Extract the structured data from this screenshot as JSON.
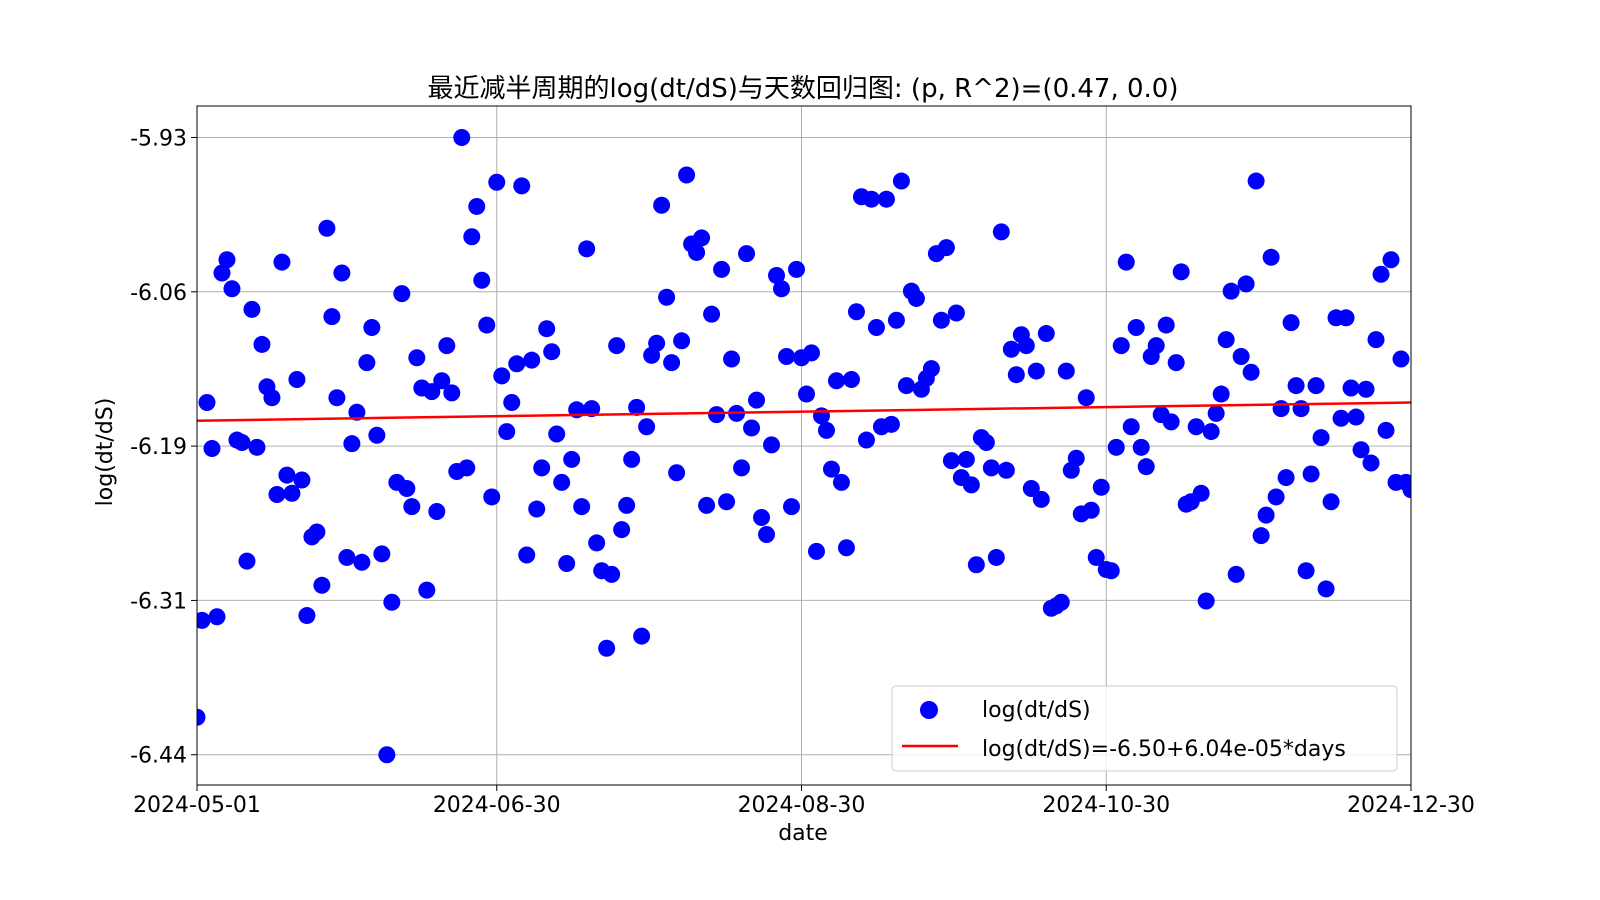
{
  "chart_data": {
    "type": "scatter",
    "title": "最近减半周期的log(dt/dS)与天数回归图: (p, R^2)=(0.47, 0.0)",
    "xlabel": "date",
    "ylabel": "log(dt/dS)",
    "xlim": [
      0,
      243
    ],
    "ylim": [
      -6.465,
      -5.904
    ],
    "grid": true,
    "x_unit": "days since 2024-05-01",
    "xticks": [
      {
        "value": 0,
        "label": "2024-05-01"
      },
      {
        "value": 60,
        "label": "2024-06-30"
      },
      {
        "value": 121,
        "label": "2024-08-30"
      },
      {
        "value": 182,
        "label": "2024-10-30"
      },
      {
        "value": 243,
        "label": "2024-12-30"
      }
    ],
    "yticks": [
      {
        "value": -5.93,
        "label": "-5.93"
      },
      {
        "value": -6.0575,
        "label": "-6.06"
      },
      {
        "value": -6.185,
        "label": "-6.19"
      },
      {
        "value": -6.3125,
        "label": "-6.31"
      },
      {
        "value": -6.44,
        "label": "-6.44"
      }
    ],
    "series": [
      {
        "name": "log(dt/dS)",
        "kind": "scatter",
        "color": "#0000ff",
        "y": [
          -6.409,
          -6.329,
          -6.149,
          -6.187,
          -6.326,
          -6.042,
          -6.031,
          -6.055,
          -6.18,
          -6.182,
          -6.28,
          -6.072,
          -6.186,
          -6.101,
          -6.136,
          -6.145,
          -6.225,
          -6.033,
          -6.209,
          -6.224,
          -6.13,
          -6.213,
          -6.325,
          -6.26,
          -6.256,
          -6.3,
          -6.005,
          -6.078,
          -6.145,
          -6.042,
          -6.277,
          -6.183,
          -6.157,
          -6.281,
          -6.116,
          -6.087,
          -6.176,
          -6.274,
          -6.44,
          -6.314,
          -6.215,
          -6.059,
          -6.22,
          -6.235,
          -6.112,
          -6.137,
          -6.304,
          -6.14,
          -6.239,
          -6.131,
          -6.102,
          -6.141,
          -6.206,
          -5.93,
          -6.203,
          -6.012,
          -5.987,
          -6.048,
          -6.085,
          -6.227,
          -5.967,
          -6.127,
          -6.173,
          -6.149,
          -6.117,
          -5.97,
          -6.275,
          -6.114,
          -6.237,
          -6.203,
          -6.088,
          -6.107,
          -6.175,
          -6.215,
          -6.282,
          -6.196,
          -6.155,
          -6.235,
          -6.022,
          -6.154,
          -6.265,
          -6.288,
          -6.352,
          -6.291,
          -6.102,
          -6.254,
          -6.234,
          -6.196,
          -6.153,
          -6.342,
          -6.169,
          -6.11,
          -6.1,
          -5.986,
          -6.062,
          -6.116,
          -6.207,
          -6.098,
          -5.961,
          -6.018,
          -6.025,
          -6.013,
          -6.234,
          -6.076,
          -6.159,
          -6.039,
          -6.231,
          -6.113,
          -6.158,
          -6.203,
          -6.026,
          -6.17,
          -6.147,
          -6.244,
          -6.258,
          -6.184,
          -6.044,
          -6.055,
          -6.111,
          -6.235,
          -6.039,
          -6.112,
          -6.142,
          -6.108,
          -6.272,
          -6.16,
          -6.172,
          -6.204,
          -6.131,
          -6.215,
          -6.269,
          -6.13,
          -6.074,
          -5.979,
          -6.18,
          -5.981,
          -6.087,
          -6.169,
          -5.981,
          -6.167,
          -6.081,
          -5.966,
          -6.135,
          -6.057,
          -6.063,
          -6.138,
          -6.129,
          -6.121,
          -6.026,
          -6.081,
          -6.021,
          -6.197,
          -6.075,
          -6.211,
          -6.196,
          -6.217,
          -6.283,
          -6.178,
          -6.182,
          -6.203,
          -6.277,
          -6.008,
          -6.205,
          -6.105,
          -6.126,
          -6.093,
          -6.102,
          -6.22,
          -6.123,
          -6.229,
          -6.092,
          -6.319,
          -6.317,
          -6.314,
          -6.123,
          -6.205,
          -6.195,
          -6.241,
          -6.145,
          -6.238,
          -6.277,
          -6.219,
          -6.287,
          -6.288,
          -6.186,
          -6.102,
          -6.033,
          -6.169,
          -6.087,
          -6.186,
          -6.202,
          -6.111,
          -6.102,
          -6.159,
          -6.085,
          -6.165,
          -6.116,
          -6.041,
          -6.233,
          -6.231,
          -6.169,
          -6.224,
          -6.313,
          -6.173,
          -6.158,
          -6.142,
          -6.097,
          -6.057,
          -6.291,
          -6.111,
          -6.051,
          -6.124,
          -5.966,
          -6.259,
          -6.242,
          -6.029,
          -6.227,
          -6.154,
          -6.211,
          -6.083,
          -6.135,
          -6.154,
          -6.288,
          -6.208,
          -6.135,
          -6.178,
          -6.303,
          -6.231,
          -6.079,
          -6.162,
          -6.079,
          -6.137,
          -6.161,
          -6.188,
          -6.138,
          -6.199,
          -6.097,
          -6.043,
          -6.172,
          -6.031,
          -6.215,
          -6.113,
          -6.215,
          -6.221
        ]
      },
      {
        "name": "log(dt/dS)=-6.50+6.04e-05*days",
        "kind": "line",
        "color": "#ff0000",
        "x": [
          0,
          243
        ],
        "y": [
          -6.164,
          -6.149
        ]
      }
    ],
    "legend": {
      "placement": "lower-right"
    }
  }
}
